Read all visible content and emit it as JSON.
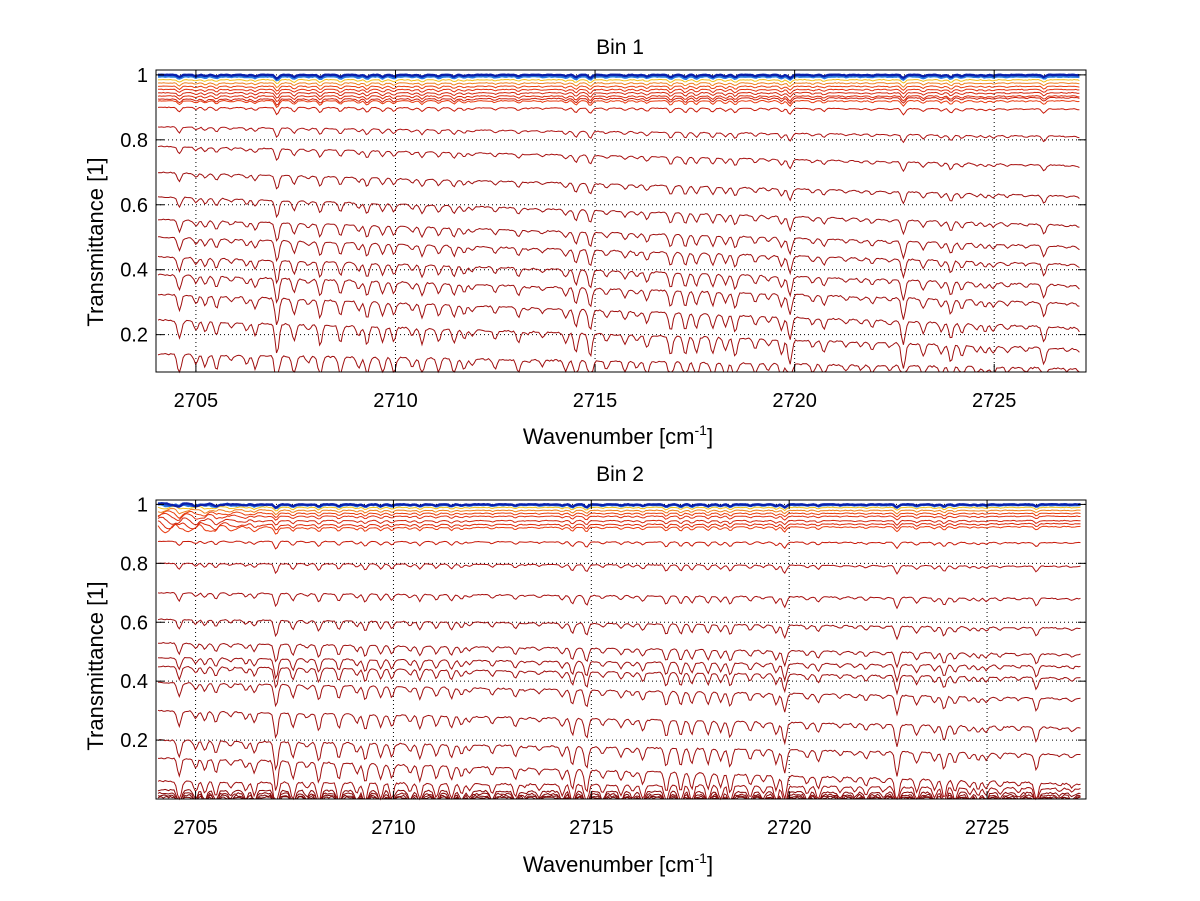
{
  "chart_data": [
    {
      "type": "line",
      "title": "Bin 1",
      "xlabel": "Wavenumber [cm",
      "xlabel_sup": "-1",
      "xlabel_end": "]",
      "ylabel": "Transmittance [1]",
      "xlim": [
        2704,
        2727.3
      ],
      "ylim": [
        0.085,
        1.015
      ],
      "xticks": [
        2705,
        2710,
        2715,
        2720,
        2725
      ],
      "yticks": [
        0.2,
        0.4,
        0.6,
        0.8,
        1
      ],
      "ytick_labels": [
        "0.2",
        "0.4",
        "0.6",
        "0.8",
        "1"
      ],
      "grid": true,
      "baselines": [
        1.0,
        1.0,
        0.995,
        0.985,
        0.975,
        0.965,
        0.955,
        0.945,
        0.935,
        0.925,
        0.92,
        0.9,
        0.84,
        0.78,
        0.7,
        0.625,
        0.555,
        0.5,
        0.44,
        0.385,
        0.325,
        0.245,
        0.14
      ],
      "end_values": [
        1.0,
        1.0,
        0.995,
        0.985,
        0.975,
        0.965,
        0.955,
        0.945,
        0.935,
        0.93,
        0.92,
        0.895,
        0.81,
        0.72,
        0.625,
        0.535,
        0.47,
        0.415,
        0.35,
        0.295,
        0.22,
        0.155,
        0.095
      ],
      "series_colors": [
        "#0b1fa8",
        "#1e4fd0",
        "#2a7be0",
        "#f0c020",
        "#f08020",
        "#e84010",
        "#e03010",
        "#d42a10",
        "#dc2a0a",
        "#cc200c",
        "#e83a10",
        "#c81a0a",
        "#b01414",
        "#a81010",
        "#a01010",
        "#a01010",
        "#a01010",
        "#a01010",
        "#a01010",
        "#a01010",
        "#a01010",
        "#a01010",
        "#a01010"
      ]
    },
    {
      "type": "line",
      "title": "Bin 2",
      "xlabel": "Wavenumber [cm",
      "xlabel_sup": "-1",
      "xlabel_end": "]",
      "ylabel": "Transmittance [1]",
      "xlim": [
        2704,
        2727.5
      ],
      "ylim": [
        0.0,
        1.015
      ],
      "xticks": [
        2705,
        2710,
        2715,
        2720,
        2725
      ],
      "yticks": [
        0.2,
        0.4,
        0.6,
        0.8,
        1
      ],
      "ytick_labels": [
        "0.2",
        "0.4",
        "0.6",
        "0.8",
        "1"
      ],
      "grid": true,
      "baselines": [
        1.0,
        1.0,
        0.998,
        0.99,
        0.98,
        0.97,
        0.96,
        0.945,
        0.93,
        0.92,
        0.875,
        0.8,
        0.7,
        0.61,
        0.53,
        0.48,
        0.45,
        0.395,
        0.3,
        0.2,
        0.14,
        0.06,
        0.03,
        0.02,
        0.012,
        0.006
      ],
      "end_values": [
        1.0,
        1.0,
        0.998,
        0.99,
        0.98,
        0.97,
        0.96,
        0.945,
        0.935,
        0.925,
        0.87,
        0.79,
        0.68,
        0.58,
        0.49,
        0.45,
        0.41,
        0.34,
        0.24,
        0.15,
        0.05,
        0.035,
        0.02,
        0.012,
        0.006,
        0.003
      ],
      "series_colors": [
        "#0b1fa8",
        "#1e4fd0",
        "#2a7be0",
        "#f0c020",
        "#f08020",
        "#e84010",
        "#e03010",
        "#d42a10",
        "#dc2a0a",
        "#e83a10",
        "#c81a0a",
        "#b01414",
        "#a81010",
        "#a01010",
        "#a01010",
        "#a01010",
        "#a01010",
        "#a01010",
        "#a01010",
        "#a01010",
        "#a01010",
        "#a01010",
        "#8a0808",
        "#8a0808",
        "#7a0606",
        "#7a0606"
      ]
    }
  ]
}
